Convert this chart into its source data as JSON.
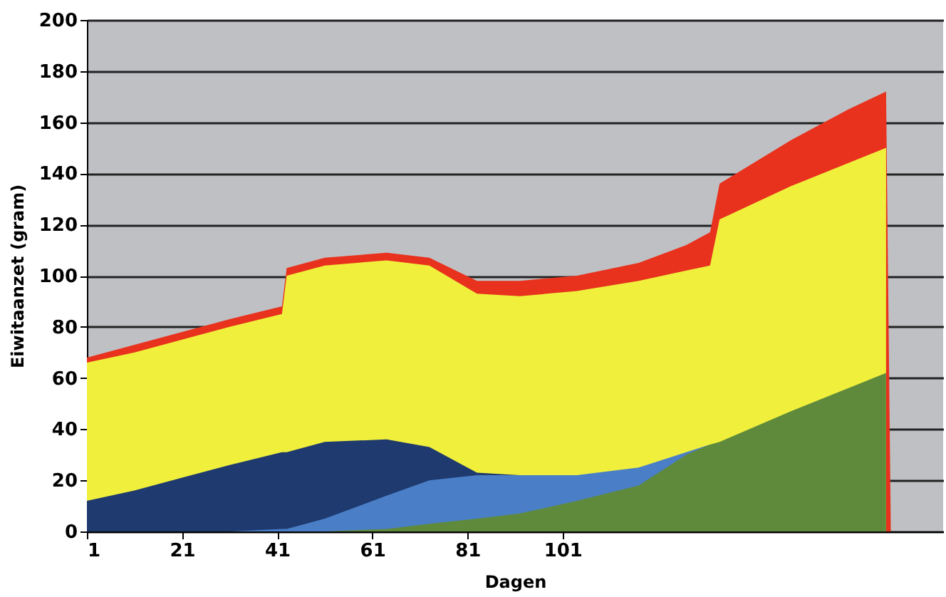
{
  "chart_data": {
    "type": "area",
    "xlabel": "Dagen",
    "ylabel": "Eiwitaanzet (gram)",
    "x": [
      1,
      11,
      21,
      31,
      42,
      43,
      51,
      64,
      73,
      83,
      92,
      104,
      117,
      127,
      132,
      134,
      149,
      161,
      169,
      170,
      181
    ],
    "series": [
      {
        "color": "#e8321e",
        "values": [
          68,
          73,
          78,
          83,
          88,
          103,
          107,
          109,
          107,
          98,
          98,
          100,
          105,
          112,
          117,
          136,
          153,
          165,
          172,
          0,
          0
        ]
      },
      {
        "color": "#f0f03c",
        "values": [
          66,
          70,
          75,
          80,
          85,
          100,
          104,
          106,
          104,
          93,
          92,
          94,
          98,
          102,
          104,
          122,
          135,
          144,
          150,
          null,
          null
        ]
      },
      {
        "color": "#1f3a6e",
        "values": [
          12,
          16,
          21,
          26,
          31,
          31,
          35,
          36,
          33,
          23,
          22,
          null,
          null,
          null,
          null,
          null,
          null,
          null,
          null,
          null,
          null
        ]
      },
      {
        "color": "#4a7fc8",
        "values": [
          0,
          0,
          0,
          0,
          1,
          1,
          5,
          14,
          20,
          22,
          22,
          22,
          25,
          31,
          34,
          null,
          null,
          null,
          null,
          null,
          null
        ]
      },
      {
        "color": "#5f8a3c",
        "values": [
          0,
          0,
          0,
          0,
          0,
          0,
          0,
          1,
          3,
          5,
          7,
          12,
          18,
          30,
          34,
          35,
          47,
          56,
          62,
          null,
          null
        ]
      }
    ],
    "xlim": [
      1,
      181
    ],
    "xticks": [
      1,
      21,
      41,
      61,
      81,
      101
    ],
    "ylim": [
      0,
      200
    ],
    "yticks": [
      0,
      20,
      40,
      60,
      80,
      100,
      120,
      140,
      160,
      180,
      200
    ],
    "grid": "y"
  }
}
